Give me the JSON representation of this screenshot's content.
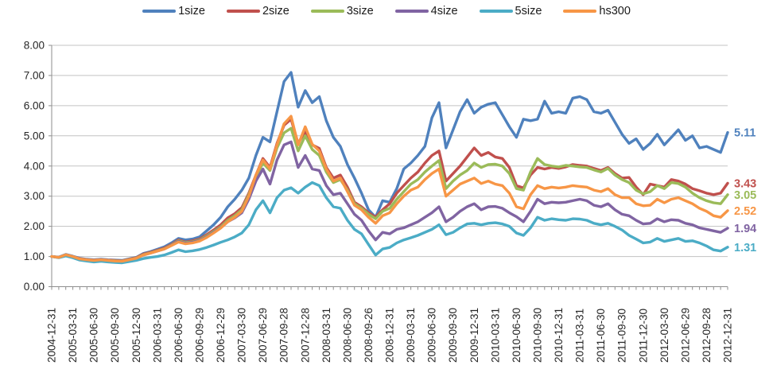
{
  "chart_data": {
    "type": "line",
    "title": "",
    "legend_position": "top",
    "grid": true,
    "x_axis": {
      "n_points": 97,
      "points_per_label": 3,
      "tick_labels": [
        "2004-12-31",
        "2005-03-31",
        "2005-06-30",
        "2005-09-30",
        "2005-12-30",
        "2006-03-31",
        "2006-06-30",
        "2006-09-29",
        "2006-12-29",
        "2007-03-30",
        "2007-06-29",
        "2007-09-28",
        "2007-12-28",
        "2008-03-31",
        "2008-06-30",
        "2008-09-26",
        "2008-12-31",
        "2009-03-31",
        "2009-06-30",
        "2009-09-30",
        "2009-12-31",
        "2010-03-31",
        "2010-06-30",
        "2010-09-30",
        "2010-12-31",
        "2011-03-31",
        "2011-06-30",
        "2011-09-30",
        "2011-12-30",
        "2012-03-30",
        "2012-06-29",
        "2012-09-28",
        "2012-12-31"
      ]
    },
    "y_axis": {
      "min": 0,
      "max": 8,
      "step": 1,
      "tick_labels": [
        "0.00",
        "1.00",
        "2.00",
        "3.00",
        "4.00",
        "5.00",
        "6.00",
        "7.00",
        "8.00"
      ]
    },
    "series": [
      {
        "name": "1size",
        "color": "#4F81BD",
        "end_label": "5.11",
        "values": [
          1.0,
          0.98,
          1.07,
          1.01,
          0.94,
          0.91,
          0.89,
          0.91,
          0.89,
          0.88,
          0.87,
          0.92,
          0.97,
          1.1,
          1.16,
          1.24,
          1.32,
          1.45,
          1.6,
          1.55,
          1.58,
          1.65,
          1.85,
          2.05,
          2.3,
          2.65,
          2.9,
          3.2,
          3.6,
          4.35,
          4.95,
          4.8,
          5.8,
          6.8,
          7.1,
          5.95,
          6.5,
          6.1,
          6.3,
          5.5,
          4.95,
          4.65,
          4.05,
          3.6,
          3.1,
          2.55,
          2.3,
          2.85,
          2.8,
          3.25,
          3.9,
          4.1,
          4.35,
          4.65,
          5.6,
          6.1,
          4.6,
          5.2,
          5.8,
          6.2,
          5.75,
          5.95,
          6.05,
          6.1,
          5.7,
          5.3,
          4.95,
          5.55,
          5.5,
          5.55,
          6.15,
          5.75,
          5.8,
          5.75,
          6.25,
          6.3,
          6.2,
          5.8,
          5.75,
          5.85,
          5.45,
          5.05,
          4.75,
          4.9,
          4.55,
          4.75,
          5.05,
          4.7,
          4.95,
          5.2,
          4.85,
          5.0,
          4.6,
          4.65,
          4.55,
          4.45,
          5.11
        ]
      },
      {
        "name": "2size",
        "color": "#C0504D",
        "end_label": "3.43",
        "values": [
          1.0,
          0.97,
          1.05,
          1.0,
          0.93,
          0.9,
          0.88,
          0.9,
          0.88,
          0.87,
          0.86,
          0.91,
          0.96,
          1.08,
          1.14,
          1.21,
          1.28,
          1.4,
          1.55,
          1.48,
          1.52,
          1.58,
          1.72,
          1.88,
          2.05,
          2.28,
          2.42,
          2.62,
          3.1,
          3.7,
          4.25,
          3.95,
          4.75,
          5.35,
          5.55,
          4.75,
          5.15,
          4.7,
          4.58,
          3.95,
          3.6,
          3.7,
          3.3,
          2.8,
          2.65,
          2.45,
          2.3,
          2.55,
          2.75,
          3.1,
          3.35,
          3.6,
          3.8,
          4.1,
          4.35,
          4.5,
          3.5,
          3.75,
          4.0,
          4.3,
          4.6,
          4.35,
          4.45,
          4.3,
          4.25,
          3.95,
          3.35,
          3.27,
          3.7,
          3.95,
          3.9,
          3.95,
          3.92,
          3.97,
          4.05,
          4.02,
          4.0,
          3.92,
          3.85,
          3.95,
          3.75,
          3.6,
          3.62,
          3.3,
          3.05,
          3.4,
          3.35,
          3.3,
          3.55,
          3.5,
          3.4,
          3.25,
          3.18,
          3.1,
          3.05,
          3.1,
          3.43
        ]
      },
      {
        "name": "3size",
        "color": "#9BBB59",
        "end_label": "3.05",
        "values": [
          1.0,
          0.97,
          1.04,
          0.99,
          0.92,
          0.89,
          0.87,
          0.89,
          0.87,
          0.86,
          0.85,
          0.9,
          0.95,
          1.06,
          1.12,
          1.19,
          1.26,
          1.38,
          1.52,
          1.46,
          1.49,
          1.55,
          1.68,
          1.83,
          1.98,
          2.2,
          2.35,
          2.55,
          3.05,
          3.65,
          4.1,
          3.85,
          4.6,
          5.1,
          5.25,
          4.5,
          5.0,
          4.55,
          4.35,
          3.8,
          3.45,
          3.55,
          3.2,
          2.75,
          2.6,
          2.4,
          2.25,
          2.5,
          2.6,
          2.9,
          3.15,
          3.4,
          3.55,
          3.8,
          4.0,
          4.18,
          3.25,
          3.5,
          3.7,
          3.85,
          4.1,
          3.95,
          4.05,
          4.06,
          4.0,
          3.75,
          3.25,
          3.2,
          3.8,
          4.25,
          4.05,
          4.0,
          3.97,
          4.02,
          4.0,
          3.97,
          3.95,
          3.87,
          3.8,
          3.92,
          3.7,
          3.55,
          3.45,
          3.2,
          3.08,
          3.15,
          3.35,
          3.25,
          3.45,
          3.42,
          3.3,
          3.1,
          2.95,
          2.85,
          2.78,
          2.75,
          3.05
        ]
      },
      {
        "name": "4size",
        "color": "#8064A2",
        "end_label": "1.94",
        "values": [
          1.0,
          0.97,
          1.04,
          0.99,
          0.92,
          0.89,
          0.87,
          0.89,
          0.87,
          0.85,
          0.84,
          0.89,
          0.94,
          1.05,
          1.11,
          1.18,
          1.25,
          1.37,
          1.5,
          1.44,
          1.47,
          1.53,
          1.65,
          1.8,
          1.95,
          2.15,
          2.28,
          2.45,
          2.9,
          3.5,
          3.9,
          3.4,
          4.2,
          4.7,
          4.8,
          3.95,
          4.35,
          3.9,
          3.85,
          3.35,
          3.05,
          3.1,
          2.75,
          2.4,
          2.2,
          1.85,
          1.55,
          1.8,
          1.75,
          1.9,
          1.95,
          2.05,
          2.15,
          2.3,
          2.45,
          2.65,
          2.15,
          2.3,
          2.5,
          2.65,
          2.75,
          2.55,
          2.65,
          2.66,
          2.6,
          2.45,
          2.32,
          2.15,
          2.5,
          2.9,
          2.75,
          2.8,
          2.78,
          2.8,
          2.85,
          2.9,
          2.85,
          2.7,
          2.65,
          2.75,
          2.55,
          2.4,
          2.35,
          2.2,
          2.08,
          2.1,
          2.25,
          2.15,
          2.22,
          2.2,
          2.1,
          2.05,
          1.95,
          1.9,
          1.85,
          1.8,
          1.94
        ]
      },
      {
        "name": "5size",
        "color": "#4BACC6",
        "end_label": "1.31",
        "values": [
          1.0,
          0.96,
          1.02,
          0.96,
          0.88,
          0.85,
          0.82,
          0.84,
          0.82,
          0.8,
          0.79,
          0.83,
          0.87,
          0.93,
          0.97,
          1.0,
          1.05,
          1.13,
          1.22,
          1.16,
          1.19,
          1.23,
          1.3,
          1.38,
          1.47,
          1.55,
          1.65,
          1.78,
          2.05,
          2.55,
          2.85,
          2.45,
          2.95,
          3.2,
          3.28,
          3.1,
          3.3,
          3.45,
          3.35,
          2.95,
          2.65,
          2.6,
          2.2,
          1.9,
          1.75,
          1.4,
          1.05,
          1.25,
          1.3,
          1.45,
          1.55,
          1.62,
          1.7,
          1.8,
          1.9,
          2.05,
          1.72,
          1.8,
          1.95,
          2.08,
          2.1,
          2.05,
          2.1,
          2.12,
          2.08,
          2.0,
          1.78,
          1.7,
          1.95,
          2.3,
          2.2,
          2.25,
          2.22,
          2.2,
          2.25,
          2.24,
          2.2,
          2.1,
          2.05,
          2.1,
          2.0,
          1.88,
          1.7,
          1.58,
          1.45,
          1.48,
          1.6,
          1.5,
          1.55,
          1.6,
          1.5,
          1.52,
          1.45,
          1.35,
          1.22,
          1.18,
          1.31
        ]
      },
      {
        "name": "hs300",
        "color": "#F79646",
        "end_label": "2.52",
        "values": [
          1.0,
          0.97,
          1.06,
          1.0,
          0.92,
          0.89,
          0.87,
          0.89,
          0.87,
          0.85,
          0.84,
          0.89,
          0.94,
          1.05,
          1.11,
          1.18,
          1.25,
          1.36,
          1.48,
          1.42,
          1.45,
          1.51,
          1.63,
          1.78,
          1.94,
          2.15,
          2.3,
          2.5,
          3.0,
          3.7,
          4.2,
          3.9,
          4.7,
          5.4,
          5.65,
          4.7,
          5.3,
          4.72,
          4.5,
          3.9,
          3.5,
          3.6,
          3.15,
          2.7,
          2.55,
          2.3,
          2.1,
          2.35,
          2.45,
          2.75,
          3.0,
          3.2,
          3.3,
          3.55,
          3.75,
          3.9,
          3.0,
          3.2,
          3.4,
          3.5,
          3.6,
          3.42,
          3.5,
          3.4,
          3.35,
          3.1,
          2.65,
          2.58,
          3.05,
          3.35,
          3.25,
          3.3,
          3.27,
          3.3,
          3.35,
          3.32,
          3.3,
          3.2,
          3.15,
          3.25,
          3.05,
          2.95,
          2.95,
          2.75,
          2.68,
          2.7,
          2.9,
          2.78,
          2.9,
          2.95,
          2.85,
          2.75,
          2.6,
          2.5,
          2.35,
          2.3,
          2.52
        ]
      }
    ]
  },
  "colors": {
    "background": "#ffffff",
    "grid": "#c3c3c3",
    "axis_line": "#8e8e8e",
    "axis_text": "#262626"
  }
}
